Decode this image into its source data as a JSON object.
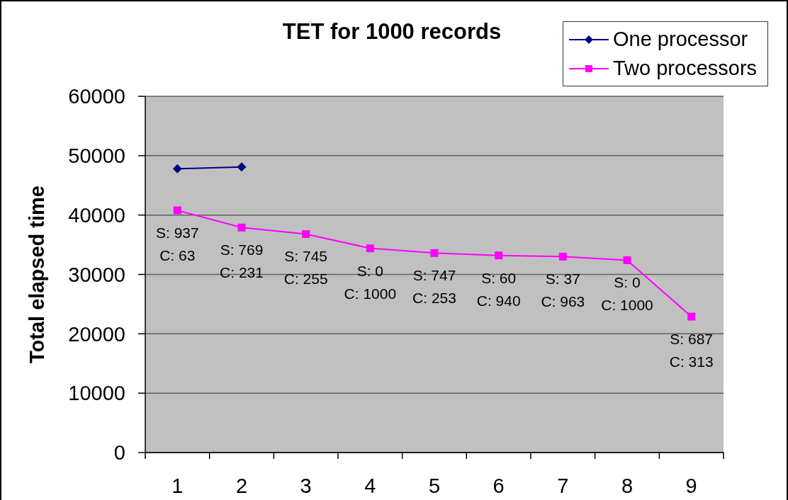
{
  "chart_data": {
    "type": "line",
    "title": "TET for 1000 records",
    "ylabel": "Total elapsed time",
    "categories": [
      "1",
      "2",
      "3",
      "4",
      "5",
      "6",
      "7",
      "8",
      "9"
    ],
    "series": [
      {
        "name": "One processor",
        "color": "#000080",
        "marker": "diamond",
        "values": [
          47800,
          48100,
          null,
          null,
          null,
          null,
          null,
          null,
          null
        ]
      },
      {
        "name": "Two processors",
        "color": "#ff00ff",
        "marker": "square",
        "values": [
          40800,
          37900,
          36800,
          34400,
          33600,
          33200,
          33000,
          32400,
          22900
        ]
      }
    ],
    "ylim": [
      0,
      60000
    ],
    "yticks": [
      0,
      10000,
      20000,
      30000,
      40000,
      50000,
      60000
    ],
    "grid": "y",
    "legend": "top right",
    "annotations": [
      {
        "text": "S: 937\nC: 63",
        "x": "1",
        "y": 40800
      },
      {
        "text": "S: 769\nC: 231",
        "x": "2",
        "y": 37900
      },
      {
        "text": "S: 745\nC: 255",
        "x": "3",
        "y": 36800
      },
      {
        "text": "S: 0\nC: 1000",
        "x": "4",
        "y": 34400
      },
      {
        "text": "S: 747\nC: 253",
        "x": "5",
        "y": 33600
      },
      {
        "text": "S: 60\nC: 940",
        "x": "6",
        "y": 33200
      },
      {
        "text": "S: 37\nC: 963",
        "x": "7",
        "y": 33000
      },
      {
        "text": "S: 0\nC: 1000",
        "x": "8",
        "y": 32400
      },
      {
        "text": "S: 687\nC: 313",
        "x": "9",
        "y": 22900
      }
    ]
  }
}
